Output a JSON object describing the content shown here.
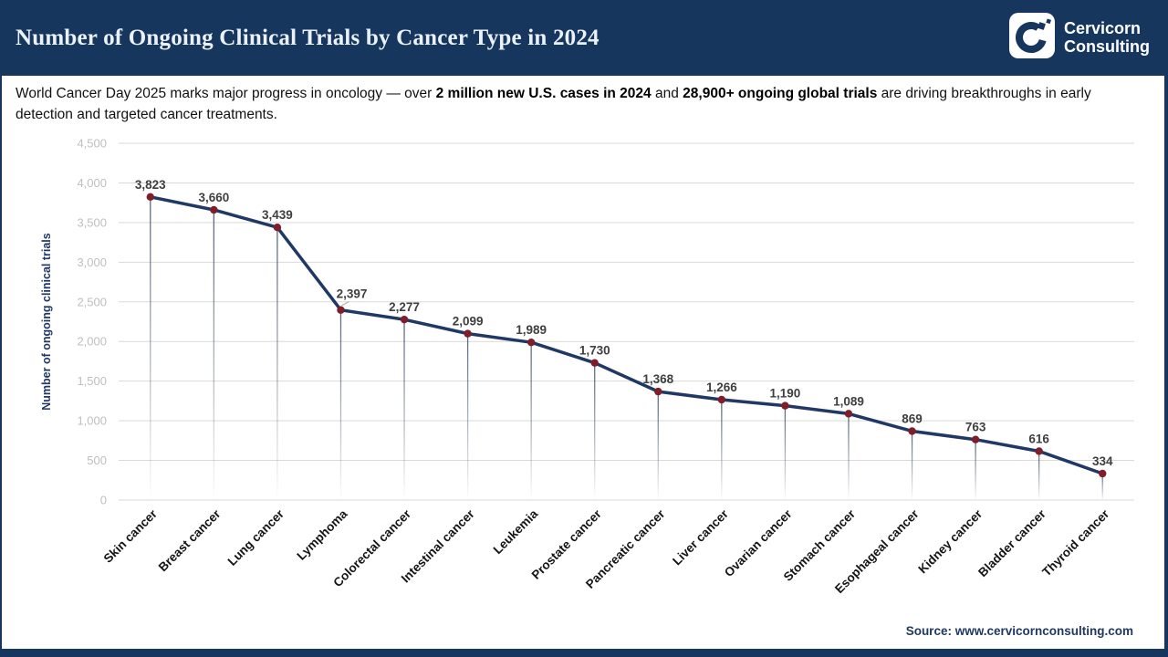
{
  "header": {
    "title": "Number of Ongoing Clinical Trials by Cancer Type in 2024",
    "brand": {
      "line1": "Cervicorn",
      "line2": "Consulting"
    }
  },
  "subtitle": {
    "parts": [
      {
        "text": "World Cancer Day 2025 marks major progress in oncology — over ",
        "bold": false
      },
      {
        "text": "2 million new U.S. cases in 2024",
        "bold": true
      },
      {
        "text": " and ",
        "bold": false
      },
      {
        "text": "28,900+ ongoing global trials",
        "bold": true
      },
      {
        "text": " are driving breakthroughs in early detection and targeted cancer treatments.",
        "bold": false
      }
    ]
  },
  "chart_data": {
    "type": "line",
    "title": "Number of Ongoing Clinical Trials by Cancer Type in 2024",
    "categories": [
      "Skin cancer",
      "Breast cancer",
      "Lung cancer",
      "Lymphoma",
      "Colorectal cancer",
      "Intestinal cancer",
      "Leukemia",
      "Prostate cancer",
      "Pancreatic cancer",
      "Liver cancer",
      "Ovarian cancer",
      "Stomach cancer",
      "Esophageal cancer",
      "Kidney cancer",
      "Bladder cancer",
      "Thyroid cancer"
    ],
    "values": [
      3823,
      3660,
      3439,
      2397,
      2277,
      2099,
      1989,
      1730,
      1368,
      1266,
      1190,
      1089,
      869,
      763,
      616,
      334
    ],
    "xlabel": "",
    "ylabel": "Number of ongoing clinical trials",
    "ylim": [
      0,
      4500
    ],
    "ytick_step": 500,
    "grid": true,
    "legend": "none",
    "label_adjust": {
      "Lymphoma": {
        "dx": 12,
        "dy": -4,
        "leader": true
      }
    }
  },
  "source": {
    "label": "Source: www.cervicornconsulting.com"
  },
  "colors": {
    "navy_brand": "#17365D",
    "line": "#1F3864",
    "marker": "#7F1D2B",
    "data_label": "#3F3F3F",
    "grid_line": "#D9D9D9",
    "y_tick": "#BFBFBF",
    "x_tick": "#141414",
    "drop_line": "#44546A",
    "title_text": "#EAF1F8"
  }
}
